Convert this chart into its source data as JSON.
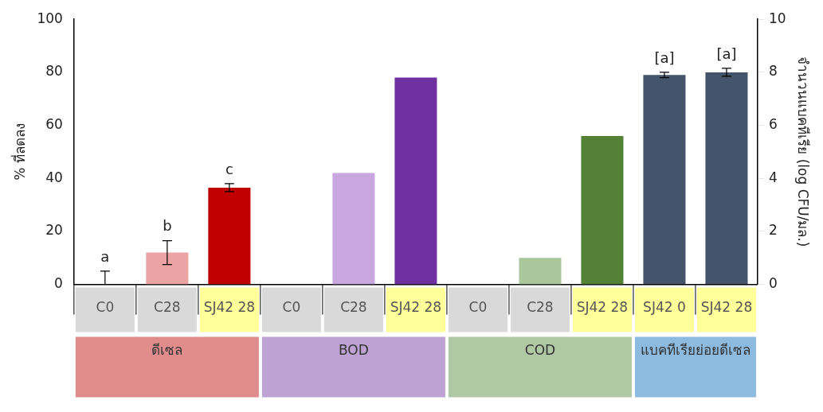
{
  "chart_data": {
    "type": "bar",
    "ylabel": "% ที่ลดลง",
    "y2label": "จำนวนแบคทีเรีย (log CFU/มล.)",
    "categories": [
      "C0",
      "C28",
      "SJ42 28",
      "C0",
      "C28",
      "SJ42 28",
      "C0",
      "C28",
      "SJ42 28",
      "SJ42 0",
      "SJ42 28"
    ],
    "series": [
      {
        "colors": [
          "#c00000",
          "#eba3a3",
          "#c00000",
          "#7030a0",
          "#c9a6e0",
          "#7030a0",
          "#538135",
          "#a9c79a",
          "#538135",
          "#44546a",
          "#44546a"
        ],
        "values": [
          0,
          12,
          36.5,
          0,
          42,
          78,
          0,
          10,
          56,
          null,
          null
        ],
        "errors": [
          [
            0,
            5
          ],
          4.5,
          1.5,
          null,
          null,
          null,
          null,
          null,
          null,
          null,
          null
        ],
        "value_labels": [
          "a",
          "b",
          "c",
          null,
          null,
          null,
          null,
          null,
          null,
          null,
          null
        ]
      },
      {
        "axis": "y2",
        "colors": [
          "#44546a",
          "#44546a",
          "#44546a",
          "#44546a",
          "#44546a",
          "#44546a",
          "#44546a",
          "#44546a",
          "#44546a",
          "#44546a",
          "#44546a"
        ],
        "values": [
          null,
          null,
          null,
          null,
          null,
          null,
          null,
          null,
          null,
          7.9,
          8.0
        ],
        "errors": [
          null,
          null,
          null,
          null,
          null,
          null,
          null,
          null,
          null,
          0.1,
          0.15
        ],
        "value_labels": [
          null,
          null,
          null,
          null,
          null,
          null,
          null,
          null,
          null,
          "[a]",
          "[a]"
        ]
      }
    ],
    "annotations": [
      "ดีเซล",
      "BOD",
      "COD",
      "แบคทีเรียย่อยดีเซล"
    ],
    "ylim": [
      0,
      100
    ],
    "yticks": [
      0,
      20,
      40,
      60,
      80,
      100
    ],
    "y2lim": [
      0,
      10
    ],
    "y2ticks": [
      0,
      2,
      4,
      6,
      8,
      10
    ],
    "grid": false,
    "legend": false
  }
}
